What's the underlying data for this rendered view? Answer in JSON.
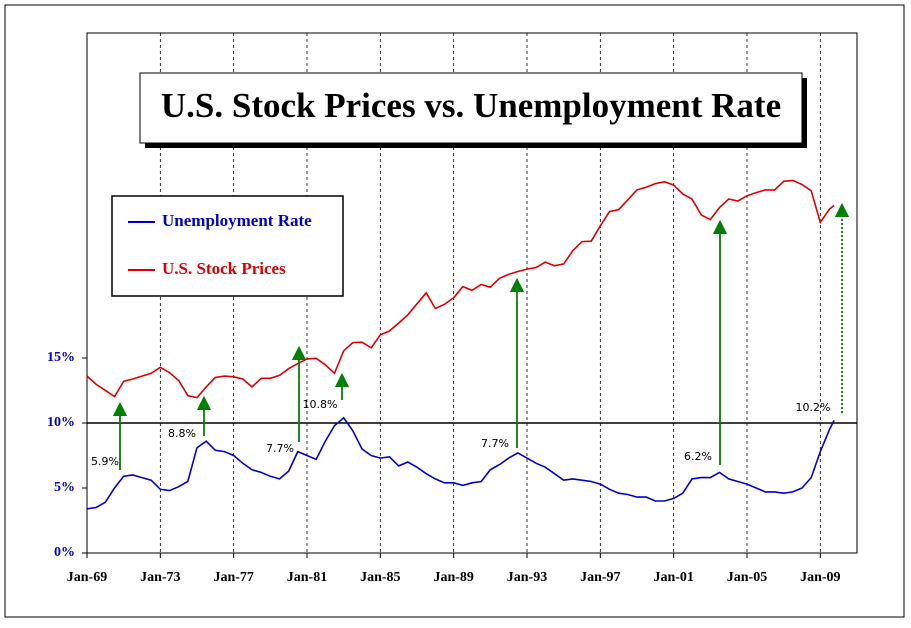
{
  "chart_data": {
    "type": "line",
    "title": "U.S. Stock Prices vs. Unemployment Rate",
    "x": [
      "1969-01",
      "1969-07",
      "1970-01",
      "1970-07",
      "1971-01",
      "1971-07",
      "1972-01",
      "1972-07",
      "1973-01",
      "1973-07",
      "1974-01",
      "1974-07",
      "1975-01",
      "1975-07",
      "1976-01",
      "1976-07",
      "1977-01",
      "1977-07",
      "1978-01",
      "1978-07",
      "1979-01",
      "1979-07",
      "1980-01",
      "1980-07",
      "1981-01",
      "1981-07",
      "1982-01",
      "1982-07",
      "1983-01",
      "1983-07",
      "1984-01",
      "1984-07",
      "1985-01",
      "1985-07",
      "1986-01",
      "1986-07",
      "1987-01",
      "1987-07",
      "1988-01",
      "1988-07",
      "1989-01",
      "1989-07",
      "1990-01",
      "1990-07",
      "1991-01",
      "1991-07",
      "1992-01",
      "1992-07",
      "1993-01",
      "1993-07",
      "1994-01",
      "1994-07",
      "1995-01",
      "1995-07",
      "1996-01",
      "1996-07",
      "1997-01",
      "1997-07",
      "1998-01",
      "1998-07",
      "1999-01",
      "1999-07",
      "2000-01",
      "2000-07",
      "2001-01",
      "2001-07",
      "2002-01",
      "2002-07",
      "2003-01",
      "2003-07",
      "2004-01",
      "2004-07",
      "2005-01",
      "2005-07",
      "2006-01",
      "2006-07",
      "2007-01",
      "2007-07",
      "2008-01",
      "2008-07",
      "2009-01",
      "2009-07",
      "2009-10"
    ],
    "series": [
      {
        "name": "Unemployment Rate",
        "color": "#0000cc",
        "values": [
          3.4,
          3.5,
          3.9,
          5.0,
          5.9,
          6.0,
          5.8,
          5.6,
          4.9,
          4.8,
          5.1,
          5.5,
          8.1,
          8.6,
          7.9,
          7.8,
          7.5,
          6.9,
          6.4,
          6.2,
          5.9,
          5.7,
          6.3,
          7.8,
          7.5,
          7.2,
          8.6,
          9.8,
          10.4,
          9.4,
          8.0,
          7.5,
          7.3,
          7.4,
          6.7,
          7.0,
          6.6,
          6.1,
          5.7,
          5.4,
          5.4,
          5.2,
          5.4,
          5.5,
          6.4,
          6.8,
          7.3,
          7.7,
          7.3,
          6.9,
          6.6,
          6.1,
          5.6,
          5.7,
          5.6,
          5.5,
          5.3,
          4.9,
          4.6,
          4.5,
          4.3,
          4.3,
          4.0,
          4.0,
          4.2,
          4.6,
          5.7,
          5.8,
          5.8,
          6.2,
          5.7,
          5.5,
          5.3,
          5.0,
          4.7,
          4.7,
          4.6,
          4.7,
          5.0,
          5.8,
          7.8,
          9.5,
          10.2
        ]
      },
      {
        "name": "U.S. Stock Prices",
        "color": "#dd0000",
        "axis": "y2",
        "values": [
          103,
          92,
          85,
          78,
          96,
          99,
          103,
          107,
          116,
          108,
          97,
          79,
          77,
          89,
          101,
          103,
          102,
          99,
          89,
          100,
          100,
          104,
          114,
          122,
          130,
          131,
          120,
          107,
          145,
          162,
          163,
          151,
          180,
          190,
          211,
          236,
          274,
          318,
          257,
          272,
          297,
          346,
          329,
          356,
          343,
          387,
          408,
          424,
          438,
          448,
          482,
          458,
          470,
          562,
          636,
          639,
          786,
          954,
          980,
          1120,
          1280,
          1328,
          1394,
          1431,
          1366,
          1211,
          1130,
          912,
          856,
          1008,
          1131,
          1101,
          1181,
          1234,
          1280,
          1277,
          1438,
          1455,
          1378,
          1267,
          825,
          987,
          1036
        ]
      }
    ],
    "xlim": [
      "1969-01",
      "2010-12"
    ],
    "xticks": [
      {
        "value": "1969-01",
        "label": "Jan-69"
      },
      {
        "value": "1973-01",
        "label": "Jan-73"
      },
      {
        "value": "1977-01",
        "label": "Jan-77"
      },
      {
        "value": "1981-01",
        "label": "Jan-81"
      },
      {
        "value": "1985-01",
        "label": "Jan-85"
      },
      {
        "value": "1989-01",
        "label": "Jan-89"
      },
      {
        "value": "1993-01",
        "label": "Jan-93"
      },
      {
        "value": "1997-01",
        "label": "Jan-97"
      },
      {
        "value": "2001-01",
        "label": "Jan-01"
      },
      {
        "value": "2005-01",
        "label": "Jan-05"
      },
      {
        "value": "2009-01",
        "label": "Jan-09"
      }
    ],
    "ylim": [
      0,
      40
    ],
    "yticks": [
      {
        "value": 0,
        "label": "0%"
      },
      {
        "value": 5,
        "label": "5%"
      },
      {
        "value": 10,
        "label": "10%"
      },
      {
        "value": 15,
        "label": "15%"
      }
    ],
    "y2lim": [
      9.4,
      10700
    ],
    "y2log": true,
    "hline": 10,
    "grid": "x",
    "legend": "upper-left",
    "annotations": [
      "5.9%",
      "8.8%",
      "7.7%",
      "10.8%",
      "7.7%",
      "6.2%",
      "10.2%"
    ]
  }
}
